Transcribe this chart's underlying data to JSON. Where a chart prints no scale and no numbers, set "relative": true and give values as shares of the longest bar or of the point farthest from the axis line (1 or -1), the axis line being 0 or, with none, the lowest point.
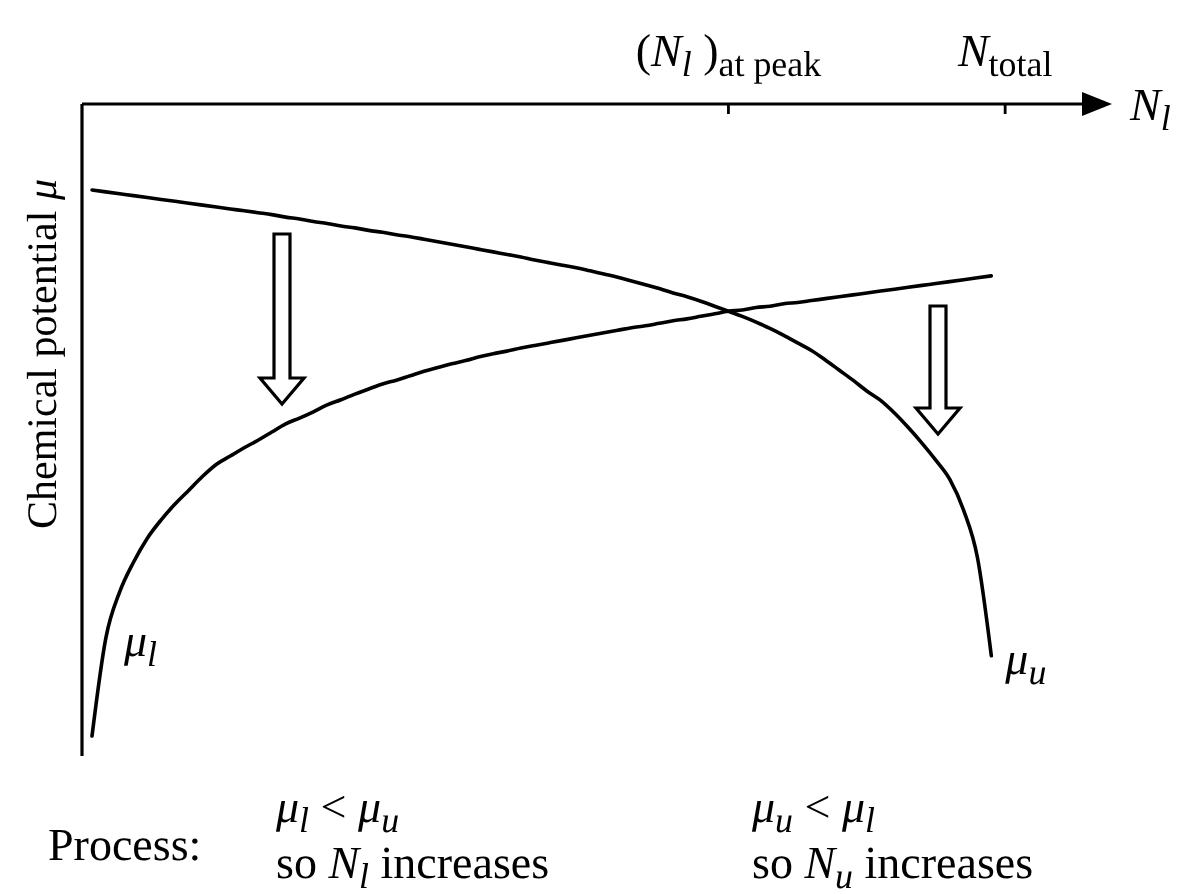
{
  "chart_data": {
    "type": "line",
    "ylabel": "Chemical potential μ",
    "xlabel": "N$_{l}$",
    "relative": true,
    "categories": [
      null,
      null,
      null,
      null,
      null,
      null,
      null,
      null,
      null,
      null,
      null,
      null,
      null,
      null,
      null,
      null,
      null,
      null,
      null,
      null,
      null,
      null,
      null,
      null,
      null,
      null,
      null,
      null,
      null,
      null,
      null,
      null,
      null,
      null,
      null,
      null,
      null,
      null,
      null,
      null,
      null,
      null,
      null,
      null,
      null,
      null,
      "(N$_{l}$ )$_{at peak}$",
      null,
      null,
      null,
      null,
      null,
      null,
      null,
      null,
      null,
      null,
      null,
      null,
      null,
      null,
      null,
      null,
      null,
      null,
      null,
      "N$_{total}$",
      null,
      null,
      null,
      null,
      null,
      null,
      null
    ],
    "series": [
      {
        "name": "μ$_{l}$",
        "color": "#000000",
        "values": [
          -1,
          -0.845,
          -0.772,
          -0.725,
          -0.687,
          -0.658,
          -0.633,
          -0.611,
          -0.589,
          -0.57,
          -0.557,
          -0.544,
          -0.532,
          -0.519,
          -0.506,
          -0.497,
          -0.487,
          -0.476,
          -0.468,
          -0.459,
          -0.451,
          -0.443,
          -0.437,
          -0.43,
          -0.423,
          -0.417,
          -0.411,
          -0.406,
          -0.4,
          -0.395,
          -0.391,
          -0.386,
          -0.382,
          -0.378,
          -0.374,
          -0.37,
          -0.366,
          -0.362,
          -0.358,
          -0.354,
          -0.351,
          -0.347,
          -0.343,
          -0.34,
          -0.336,
          -0.332,
          -0.328,
          -0.326,
          -0.322,
          -0.32,
          -0.316,
          -0.314,
          -0.311,
          -0.308,
          -0.305,
          -0.302,
          -0.299,
          -0.296,
          -0.293,
          -0.29,
          -0.287,
          -0.284,
          -0.281,
          -0.278,
          -0.275,
          -0.272,
          null,
          null,
          null,
          null,
          null,
          null,
          null,
          null
        ]
      },
      {
        "name": "μ$_{u}$",
        "color": "#000000",
        "values": [
          -0.136,
          -0.139,
          -0.142,
          -0.145,
          -0.148,
          -0.151,
          -0.154,
          -0.157,
          -0.16,
          -0.163,
          -0.166,
          -0.169,
          -0.172,
          -0.175,
          -0.179,
          -0.182,
          -0.186,
          -0.189,
          -0.193,
          -0.196,
          -0.2,
          -0.203,
          -0.207,
          -0.21,
          -0.214,
          -0.218,
          -0.222,
          -0.226,
          -0.23,
          -0.234,
          -0.238,
          -0.242,
          -0.247,
          -0.251,
          -0.255,
          -0.259,
          -0.264,
          -0.269,
          -0.274,
          -0.28,
          -0.286,
          -0.292,
          -0.299,
          -0.305,
          -0.312,
          -0.32,
          -0.328,
          -0.336,
          -0.345,
          -0.355,
          -0.366,
          -0.378,
          -0.39,
          -0.405,
          -0.421,
          -0.437,
          -0.454,
          -0.469,
          -0.489,
          -0.512,
          -0.537,
          -0.564,
          -0.594,
          -0.643,
          -0.718,
          -0.873,
          null,
          null,
          null,
          null,
          null,
          null,
          null,
          null
        ]
      }
    ],
    "annotations": [
      "Process:",
      "μ$_{l}$ < μ$_{u}$",
      "so N$_{l}$ increases",
      "μ$_{u}$ < μ$_{l}$",
      "so N$_{u}$ increases"
    ]
  }
}
